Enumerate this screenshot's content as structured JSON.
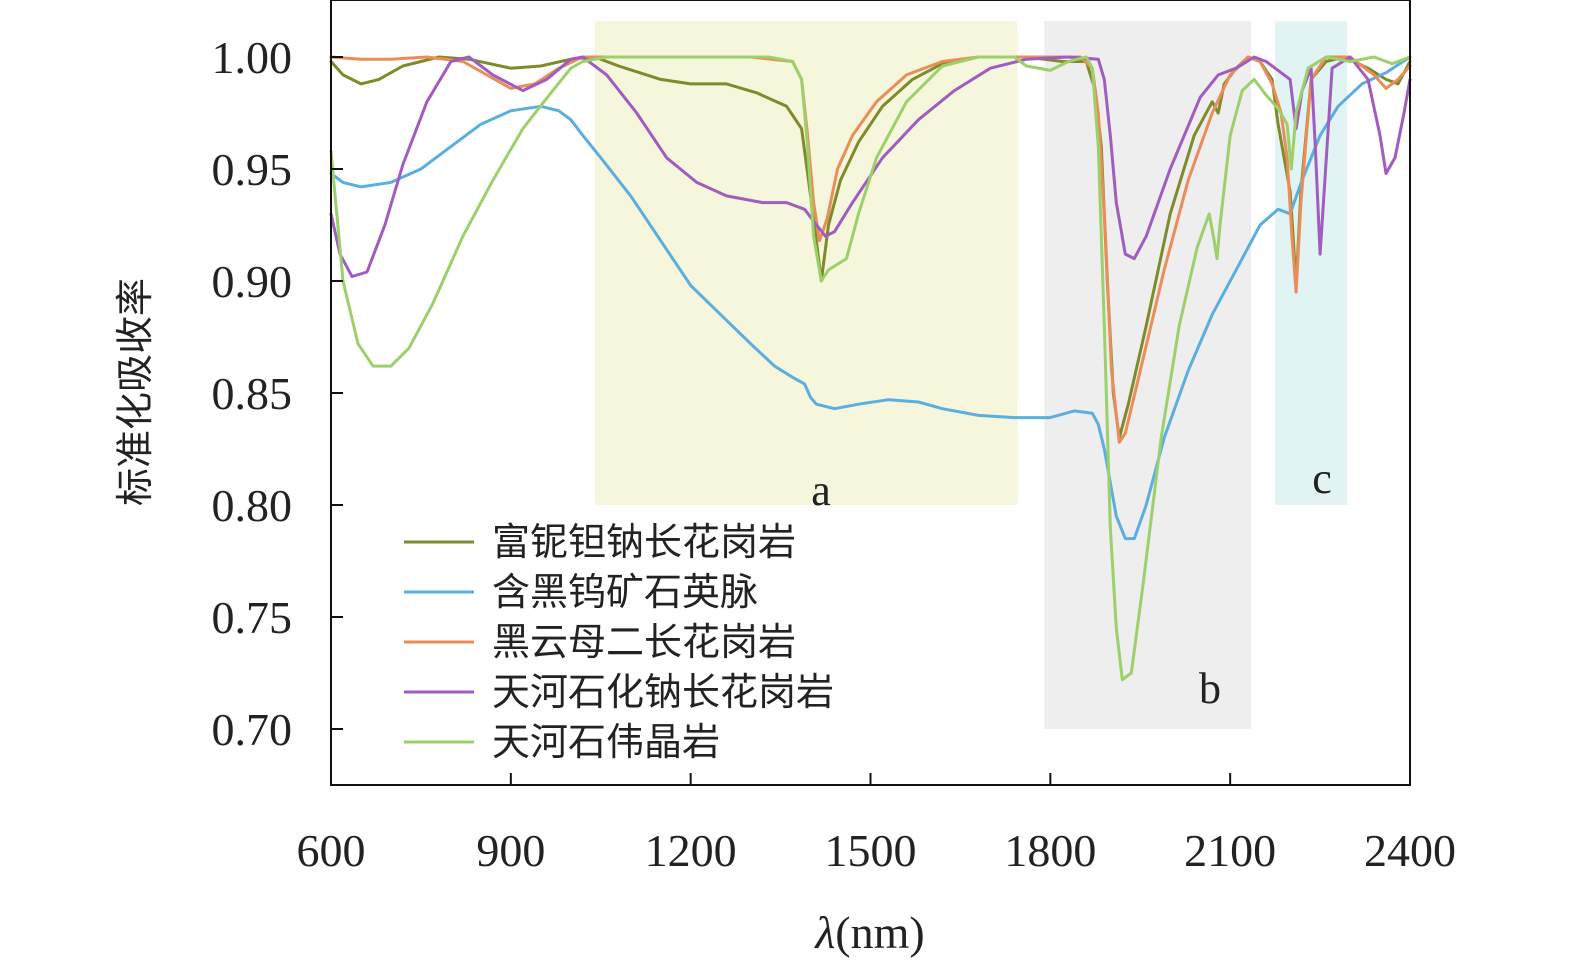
{
  "chart_data": {
    "type": "line",
    "xlabel_symbol": "λ",
    "xlabel_unit": "(nm)",
    "ylabel": "标准化吸收率",
    "xlim": [
      600,
      2400
    ],
    "ylim": [
      0.675,
      1.0
    ],
    "x_ticks": [
      600,
      900,
      1200,
      1500,
      1800,
      2100,
      2400
    ],
    "y_ticks": [
      "0.70",
      "0.75",
      "0.80",
      "0.85",
      "0.90",
      "0.95",
      "1.00"
    ],
    "regions": [
      {
        "label": "a",
        "x": [
          1040,
          1745
        ],
        "y": [
          0.8,
          1.016
        ],
        "color": "#f6f6dc"
      },
      {
        "label": "b",
        "x": [
          1790,
          2135
        ],
        "y": [
          0.7,
          1.016
        ],
        "color": "#eeeeee"
      },
      {
        "label": "c",
        "x": [
          2175,
          2295
        ],
        "y": [
          0.8,
          1.016
        ],
        "color": "#e2f3f3"
      }
    ],
    "legend_position": "bottom-left",
    "series": [
      {
        "name": "富铌钽钠长花岗岩",
        "color": "#7f8a2a",
        "points": [
          [
            600,
            0.998
          ],
          [
            620,
            0.992
          ],
          [
            650,
            0.988
          ],
          [
            680,
            0.99
          ],
          [
            720,
            0.996
          ],
          [
            780,
            1.0
          ],
          [
            830,
            0.999
          ],
          [
            900,
            0.995
          ],
          [
            950,
            0.996
          ],
          [
            1000,
            0.999
          ],
          [
            1040,
            1.0
          ],
          [
            1080,
            0.996
          ],
          [
            1150,
            0.99
          ],
          [
            1200,
            0.988
          ],
          [
            1260,
            0.988
          ],
          [
            1310,
            0.984
          ],
          [
            1360,
            0.978
          ],
          [
            1385,
            0.968
          ],
          [
            1395,
            0.948
          ],
          [
            1405,
            0.928
          ],
          [
            1418,
            0.9
          ],
          [
            1430,
            0.925
          ],
          [
            1450,
            0.945
          ],
          [
            1480,
            0.962
          ],
          [
            1520,
            0.978
          ],
          [
            1570,
            0.99
          ],
          [
            1620,
            0.997
          ],
          [
            1680,
            1.0
          ],
          [
            1760,
            1.0
          ],
          [
            1820,
            0.998
          ],
          [
            1860,
            0.998
          ],
          [
            1875,
            0.985
          ],
          [
            1885,
            0.96
          ],
          [
            1895,
            0.9
          ],
          [
            1905,
            0.85
          ],
          [
            1915,
            0.83
          ],
          [
            1930,
            0.845
          ],
          [
            1960,
            0.88
          ],
          [
            2000,
            0.93
          ],
          [
            2040,
            0.965
          ],
          [
            2070,
            0.98
          ],
          [
            2080,
            0.975
          ],
          [
            2090,
            0.988
          ],
          [
            2110,
            0.995
          ],
          [
            2130,
            1.0
          ],
          [
            2150,
            0.998
          ],
          [
            2170,
            0.99
          ],
          [
            2180,
            0.97
          ],
          [
            2190,
            0.955
          ],
          [
            2200,
            0.94
          ],
          [
            2205,
            0.92
          ],
          [
            2210,
            0.898
          ],
          [
            2218,
            0.94
          ],
          [
            2235,
            0.99
          ],
          [
            2260,
            0.998
          ],
          [
            2290,
            1.0
          ],
          [
            2330,
            0.995
          ],
          [
            2360,
            0.99
          ],
          [
            2380,
            0.988
          ],
          [
            2400,
            0.998
          ]
        ]
      },
      {
        "name": "含黑钨矿石英脉",
        "color": "#5aaee0",
        "points": [
          [
            600,
            0.948
          ],
          [
            620,
            0.944
          ],
          [
            650,
            0.942
          ],
          [
            700,
            0.944
          ],
          [
            750,
            0.95
          ],
          [
            800,
            0.96
          ],
          [
            850,
            0.97
          ],
          [
            900,
            0.976
          ],
          [
            950,
            0.978
          ],
          [
            980,
            0.976
          ],
          [
            1000,
            0.972
          ],
          [
            1020,
            0.965
          ],
          [
            1050,
            0.955
          ],
          [
            1100,
            0.938
          ],
          [
            1150,
            0.918
          ],
          [
            1200,
            0.898
          ],
          [
            1250,
            0.885
          ],
          [
            1300,
            0.872
          ],
          [
            1340,
            0.862
          ],
          [
            1370,
            0.857
          ],
          [
            1390,
            0.854
          ],
          [
            1400,
            0.848
          ],
          [
            1410,
            0.845
          ],
          [
            1440,
            0.843
          ],
          [
            1480,
            0.845
          ],
          [
            1530,
            0.847
          ],
          [
            1580,
            0.846
          ],
          [
            1620,
            0.843
          ],
          [
            1680,
            0.84
          ],
          [
            1740,
            0.839
          ],
          [
            1800,
            0.839
          ],
          [
            1840,
            0.842
          ],
          [
            1870,
            0.841
          ],
          [
            1880,
            0.836
          ],
          [
            1890,
            0.825
          ],
          [
            1900,
            0.81
          ],
          [
            1910,
            0.795
          ],
          [
            1925,
            0.785
          ],
          [
            1940,
            0.785
          ],
          [
            1960,
            0.8
          ],
          [
            1990,
            0.83
          ],
          [
            2030,
            0.86
          ],
          [
            2070,
            0.885
          ],
          [
            2110,
            0.905
          ],
          [
            2150,
            0.925
          ],
          [
            2180,
            0.932
          ],
          [
            2200,
            0.93
          ],
          [
            2220,
            0.945
          ],
          [
            2250,
            0.965
          ],
          [
            2280,
            0.978
          ],
          [
            2320,
            0.988
          ],
          [
            2360,
            0.993
          ],
          [
            2400,
            1.0
          ]
        ]
      },
      {
        "name": "黑云母二长花岗岩",
        "color": "#ea8d58",
        "points": [
          [
            600,
            1.0
          ],
          [
            650,
            0.999
          ],
          [
            700,
            0.999
          ],
          [
            760,
            1.0
          ],
          [
            820,
            0.998
          ],
          [
            860,
            0.992
          ],
          [
            900,
            0.986
          ],
          [
            940,
            0.988
          ],
          [
            980,
            0.995
          ],
          [
            1020,
            1.0
          ],
          [
            1100,
            1.0
          ],
          [
            1200,
            1.0
          ],
          [
            1300,
            1.0
          ],
          [
            1370,
            0.998
          ],
          [
            1385,
            0.99
          ],
          [
            1395,
            0.965
          ],
          [
            1405,
            0.935
          ],
          [
            1415,
            0.918
          ],
          [
            1428,
            0.928
          ],
          [
            1445,
            0.95
          ],
          [
            1470,
            0.965
          ],
          [
            1510,
            0.98
          ],
          [
            1560,
            0.992
          ],
          [
            1620,
            0.998
          ],
          [
            1680,
            1.0
          ],
          [
            1760,
            1.0
          ],
          [
            1850,
            1.0
          ],
          [
            1870,
            0.995
          ],
          [
            1880,
            0.975
          ],
          [
            1892,
            0.92
          ],
          [
            1902,
            0.86
          ],
          [
            1915,
            0.828
          ],
          [
            1925,
            0.832
          ],
          [
            1950,
            0.86
          ],
          [
            1990,
            0.905
          ],
          [
            2030,
            0.945
          ],
          [
            2070,
            0.975
          ],
          [
            2100,
            0.992
          ],
          [
            2130,
            1.0
          ],
          [
            2150,
            0.998
          ],
          [
            2170,
            0.988
          ],
          [
            2185,
            0.975
          ],
          [
            2195,
            0.955
          ],
          [
            2203,
            0.92
          ],
          [
            2210,
            0.895
          ],
          [
            2218,
            0.935
          ],
          [
            2235,
            0.99
          ],
          [
            2260,
            1.0
          ],
          [
            2300,
            1.0
          ],
          [
            2340,
            0.992
          ],
          [
            2360,
            0.986
          ],
          [
            2380,
            0.99
          ],
          [
            2400,
            0.996
          ]
        ]
      },
      {
        "name": "天河石化钠长花岗岩",
        "color": "#a05cc0",
        "points": [
          [
            600,
            0.93
          ],
          [
            615,
            0.912
          ],
          [
            635,
            0.902
          ],
          [
            660,
            0.904
          ],
          [
            690,
            0.925
          ],
          [
            720,
            0.952
          ],
          [
            760,
            0.98
          ],
          [
            800,
            0.998
          ],
          [
            830,
            1.0
          ],
          [
            870,
            0.992
          ],
          [
            920,
            0.985
          ],
          [
            960,
            0.99
          ],
          [
            1000,
            0.999
          ],
          [
            1020,
            1.0
          ],
          [
            1060,
            0.992
          ],
          [
            1110,
            0.975
          ],
          [
            1160,
            0.955
          ],
          [
            1210,
            0.944
          ],
          [
            1260,
            0.938
          ],
          [
            1320,
            0.935
          ],
          [
            1360,
            0.935
          ],
          [
            1390,
            0.932
          ],
          [
            1410,
            0.925
          ],
          [
            1425,
            0.92
          ],
          [
            1440,
            0.922
          ],
          [
            1470,
            0.935
          ],
          [
            1520,
            0.955
          ],
          [
            1580,
            0.972
          ],
          [
            1640,
            0.985
          ],
          [
            1700,
            0.995
          ],
          [
            1760,
            0.999
          ],
          [
            1830,
            1.0
          ],
          [
            1880,
            0.999
          ],
          [
            1890,
            0.99
          ],
          [
            1900,
            0.965
          ],
          [
            1910,
            0.935
          ],
          [
            1925,
            0.912
          ],
          [
            1940,
            0.91
          ],
          [
            1960,
            0.92
          ],
          [
            2000,
            0.95
          ],
          [
            2050,
            0.982
          ],
          [
            2080,
            0.992
          ],
          [
            2110,
            0.995
          ],
          [
            2140,
            1.0
          ],
          [
            2160,
            0.998
          ],
          [
            2180,
            0.994
          ],
          [
            2200,
            0.99
          ],
          [
            2210,
            0.968
          ],
          [
            2220,
            0.985
          ],
          [
            2235,
            0.995
          ],
          [
            2242,
            0.96
          ],
          [
            2250,
            0.912
          ],
          [
            2258,
            0.945
          ],
          [
            2270,
            0.995
          ],
          [
            2300,
            1.0
          ],
          [
            2330,
            0.99
          ],
          [
            2350,
            0.965
          ],
          [
            2360,
            0.948
          ],
          [
            2375,
            0.955
          ],
          [
            2390,
            0.975
          ],
          [
            2400,
            0.99
          ]
        ]
      },
      {
        "name": "天河石伟晶岩",
        "color": "#9bd06a",
        "points": [
          [
            600,
            0.958
          ],
          [
            620,
            0.9
          ],
          [
            645,
            0.872
          ],
          [
            670,
            0.862
          ],
          [
            700,
            0.862
          ],
          [
            730,
            0.87
          ],
          [
            770,
            0.89
          ],
          [
            820,
            0.92
          ],
          [
            870,
            0.945
          ],
          [
            920,
            0.968
          ],
          [
            970,
            0.985
          ],
          [
            1000,
            0.995
          ],
          [
            1020,
            0.998
          ],
          [
            1060,
            1.0
          ],
          [
            1150,
            1.0
          ],
          [
            1250,
            1.0
          ],
          [
            1330,
            1.0
          ],
          [
            1370,
            0.998
          ],
          [
            1385,
            0.99
          ],
          [
            1395,
            0.96
          ],
          [
            1405,
            0.92
          ],
          [
            1418,
            0.9
          ],
          [
            1430,
            0.905
          ],
          [
            1460,
            0.91
          ],
          [
            1480,
            0.93
          ],
          [
            1510,
            0.955
          ],
          [
            1560,
            0.98
          ],
          [
            1620,
            0.996
          ],
          [
            1680,
            1.0
          ],
          [
            1740,
            1.0
          ],
          [
            1760,
            0.996
          ],
          [
            1800,
            0.994
          ],
          [
            1830,
            0.998
          ],
          [
            1860,
            1.0
          ],
          [
            1870,
            0.995
          ],
          [
            1880,
            0.96
          ],
          [
            1890,
            0.88
          ],
          [
            1900,
            0.79
          ],
          [
            1910,
            0.745
          ],
          [
            1920,
            0.722
          ],
          [
            1935,
            0.725
          ],
          [
            1955,
            0.765
          ],
          [
            1985,
            0.83
          ],
          [
            2015,
            0.88
          ],
          [
            2045,
            0.915
          ],
          [
            2065,
            0.93
          ],
          [
            2072,
            0.92
          ],
          [
            2078,
            0.91
          ],
          [
            2083,
            0.925
          ],
          [
            2100,
            0.965
          ],
          [
            2120,
            0.985
          ],
          [
            2140,
            0.99
          ],
          [
            2160,
            0.983
          ],
          [
            2180,
            0.977
          ],
          [
            2195,
            0.97
          ],
          [
            2202,
            0.95
          ],
          [
            2210,
            0.975
          ],
          [
            2230,
            0.995
          ],
          [
            2260,
            1.0
          ],
          [
            2300,
            0.998
          ],
          [
            2340,
            1.0
          ],
          [
            2370,
            0.997
          ],
          [
            2400,
            1.0
          ]
        ]
      }
    ]
  }
}
